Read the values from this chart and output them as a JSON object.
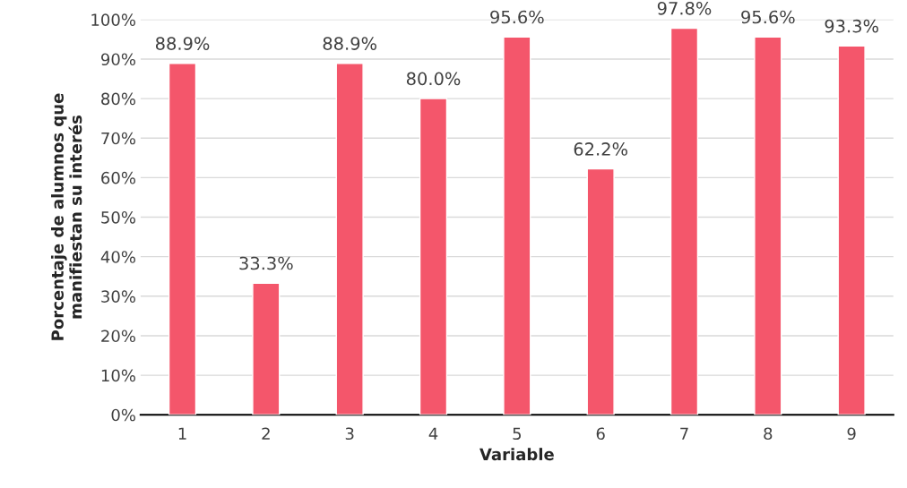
{
  "chart_data": {
    "type": "bar",
    "xlabel": "Variable",
    "ylabel": "Porcentaje de alumnos que\nmanifiestan su interés",
    "categories": [
      "1",
      "2",
      "3",
      "4",
      "5",
      "6",
      "7",
      "8",
      "9"
    ],
    "values": [
      88.9,
      33.3,
      88.9,
      80.0,
      95.6,
      62.2,
      97.8,
      95.6,
      93.3
    ],
    "value_labels": [
      "88.9%",
      "33.3%",
      "88.9%",
      "80.0%",
      "95.6%",
      "62.2%",
      "97.8%",
      "95.6%",
      "93.3%"
    ],
    "color": "#f4566b",
    "ylim": [
      0,
      100
    ],
    "yticks": [
      {
        "value": 0,
        "label": "0%"
      },
      {
        "value": 10,
        "label": "10%"
      },
      {
        "value": 20,
        "label": "20%"
      },
      {
        "value": 30,
        "label": "30%"
      },
      {
        "value": 40,
        "label": "40%"
      },
      {
        "value": 50,
        "label": "50%"
      },
      {
        "value": 60,
        "label": "60%"
      },
      {
        "value": 70,
        "label": "70%"
      },
      {
        "value": 80,
        "label": "80%"
      },
      {
        "value": 90,
        "label": "90%"
      },
      {
        "value": 100,
        "label": "100%"
      }
    ],
    "grid": "y"
  }
}
